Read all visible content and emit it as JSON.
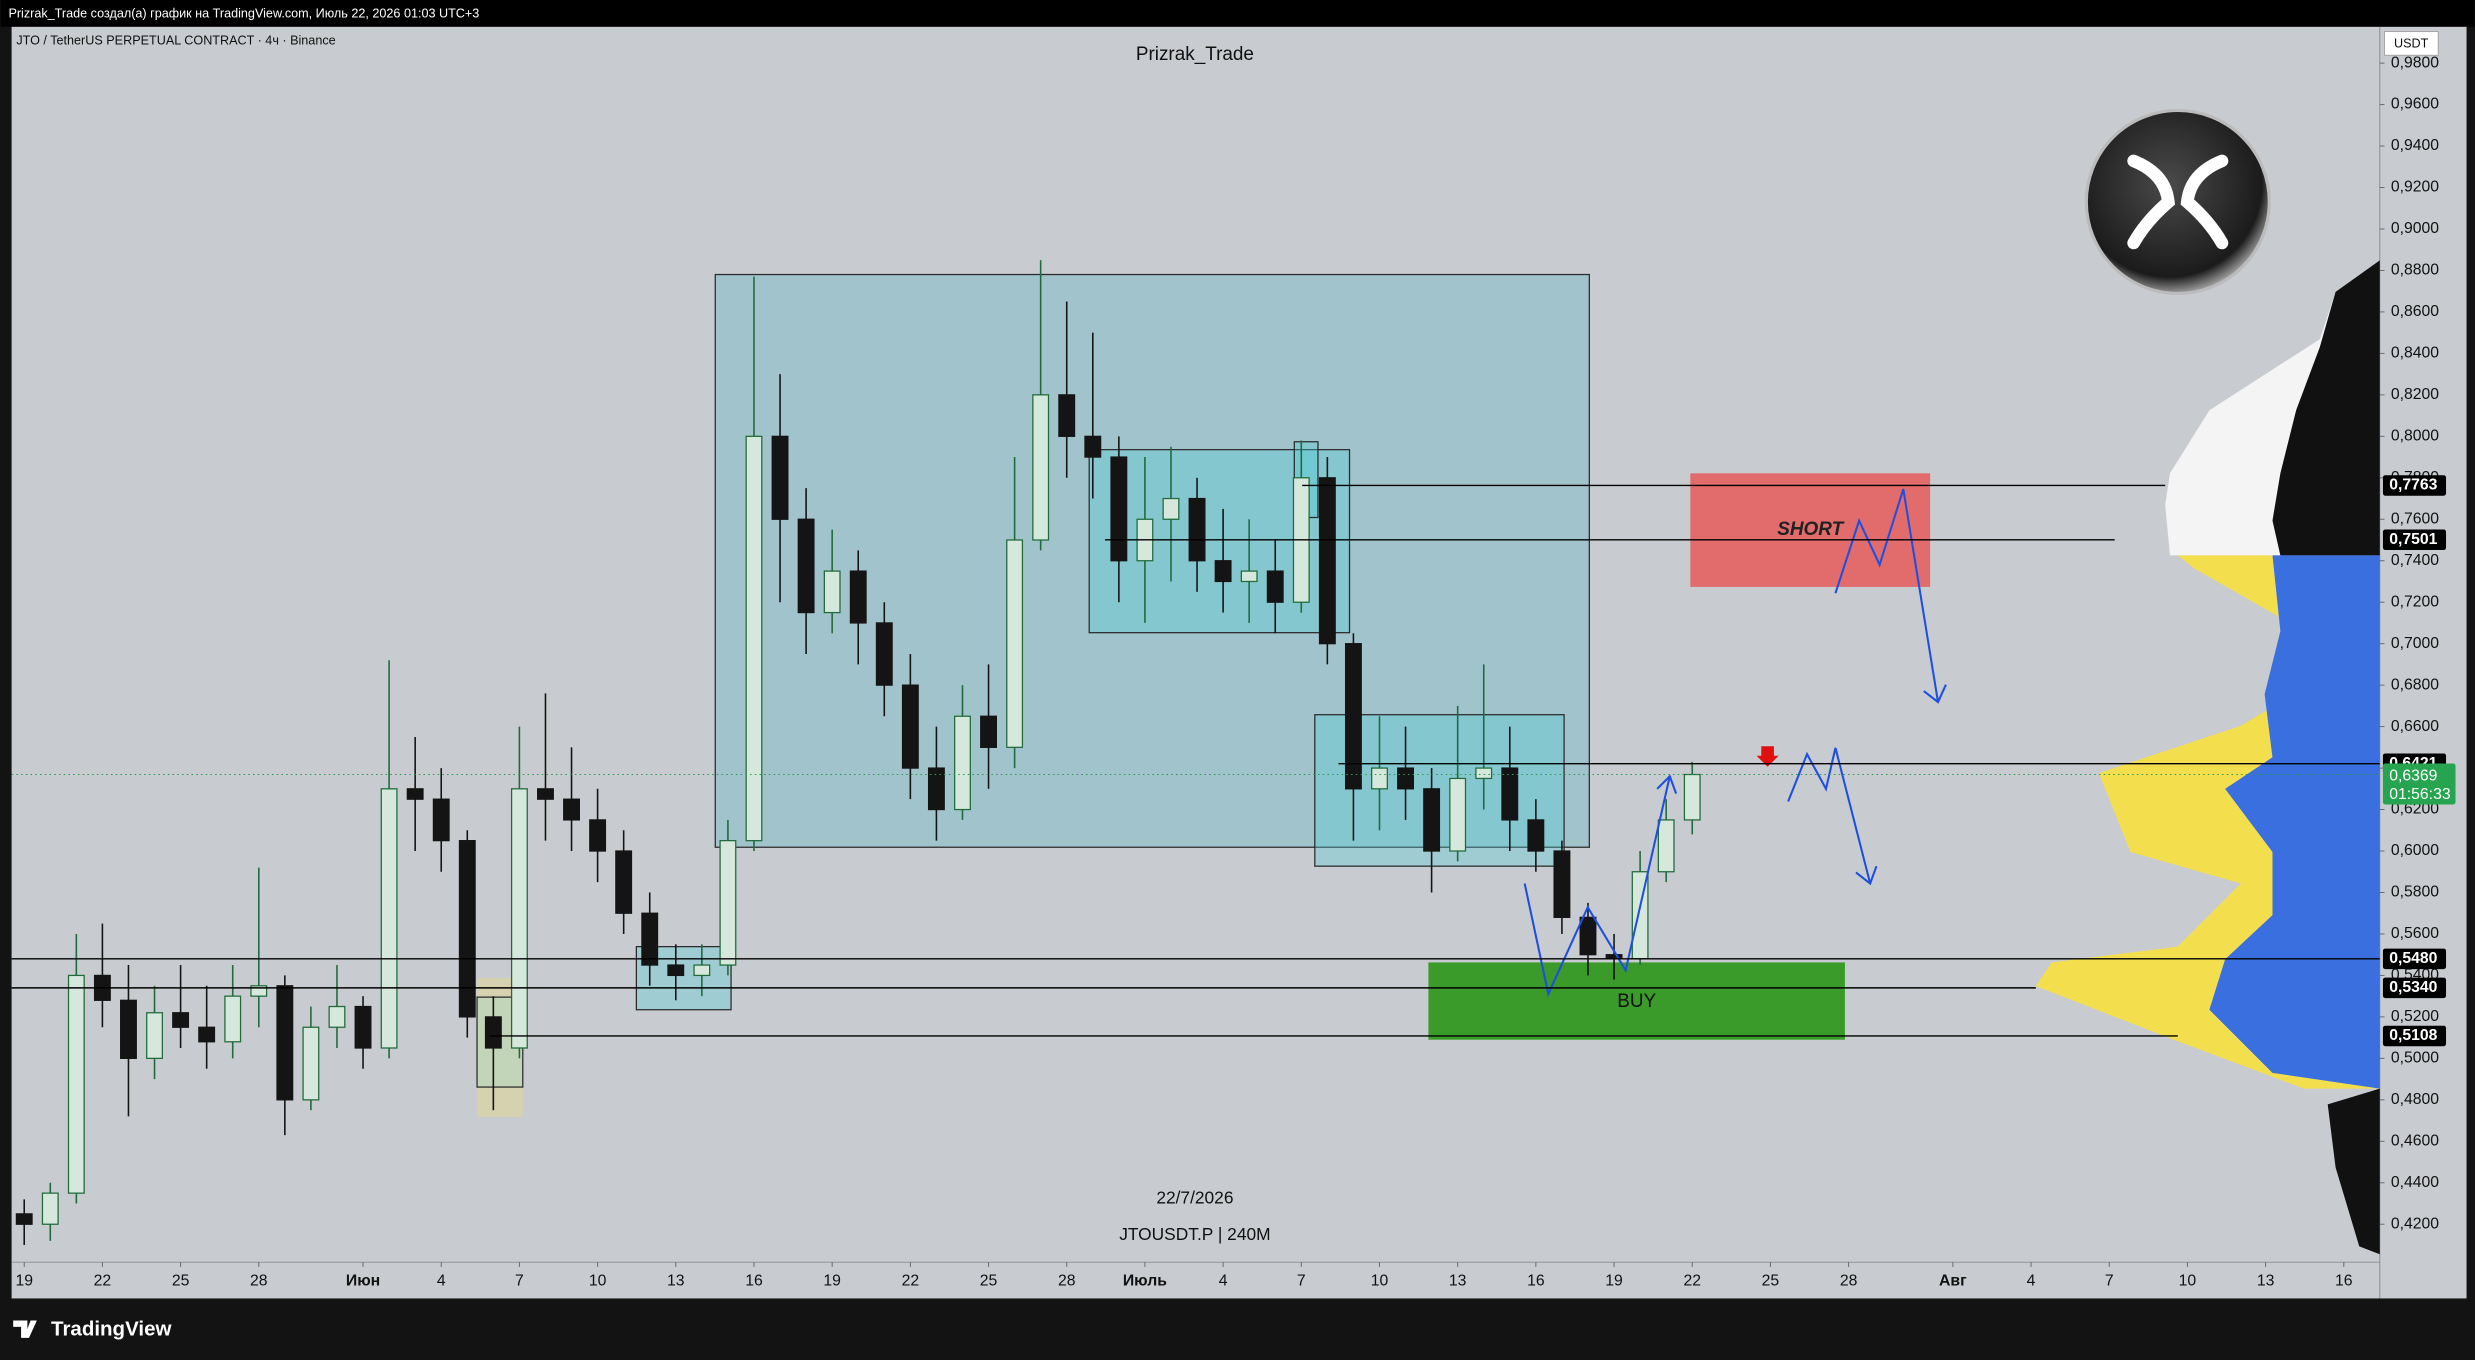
{
  "chart_data": {
    "type": "candlestick",
    "header": "Prizrak_Trade создал(а) график на TradingView.com, Июль 22, 2026 01:03 UTC+3",
    "symbol": "JTO / TetherUS PERPETUAL CONTRACT · 4ч · Binance",
    "title": "Prizrak_Trade",
    "currency": "USDT",
    "date_note": "22/7/2026",
    "ticker_note": "JTOUSDT.P | 240M",
    "brand": "TradingView",
    "zones": {
      "short": "SHORT",
      "buy": "BUY"
    },
    "up_color": "#1f6b3a",
    "down_color": "#141414",
    "x": [
      0,
      1,
      2,
      3,
      4,
      5,
      6,
      7,
      8,
      9,
      10,
      11,
      12,
      13,
      14,
      15,
      16,
      17,
      18,
      19,
      20,
      21,
      22,
      23,
      24,
      25,
      26,
      27,
      28,
      29,
      30,
      31,
      32,
      33,
      34,
      35,
      36,
      37,
      38,
      39,
      40,
      41,
      42,
      43,
      44,
      45,
      46,
      47,
      48,
      49,
      50,
      51,
      52,
      53,
      54,
      55,
      56,
      57,
      58,
      59,
      60,
      61,
      62,
      63,
      64
    ],
    "ohlc": [
      [
        0.425,
        0.432,
        0.41,
        0.42
      ],
      [
        0.42,
        0.44,
        0.412,
        0.435
      ],
      [
        0.435,
        0.56,
        0.43,
        0.54
      ],
      [
        0.54,
        0.565,
        0.515,
        0.528
      ],
      [
        0.528,
        0.545,
        0.472,
        0.5
      ],
      [
        0.5,
        0.535,
        0.49,
        0.522
      ],
      [
        0.522,
        0.545,
        0.505,
        0.515
      ],
      [
        0.515,
        0.535,
        0.495,
        0.508
      ],
      [
        0.508,
        0.545,
        0.5,
        0.53
      ],
      [
        0.53,
        0.592,
        0.515,
        0.535
      ],
      [
        0.535,
        0.54,
        0.463,
        0.48
      ],
      [
        0.48,
        0.525,
        0.475,
        0.515
      ],
      [
        0.515,
        0.545,
        0.505,
        0.525
      ],
      [
        0.525,
        0.53,
        0.495,
        0.505
      ],
      [
        0.505,
        0.692,
        0.5,
        0.63
      ],
      [
        0.63,
        0.655,
        0.6,
        0.625
      ],
      [
        0.625,
        0.64,
        0.59,
        0.605
      ],
      [
        0.605,
        0.61,
        0.51,
        0.52
      ],
      [
        0.52,
        0.53,
        0.475,
        0.505
      ],
      [
        0.505,
        0.66,
        0.5,
        0.63
      ],
      [
        0.63,
        0.676,
        0.605,
        0.625
      ],
      [
        0.625,
        0.65,
        0.6,
        0.615
      ],
      [
        0.615,
        0.63,
        0.585,
        0.6
      ],
      [
        0.6,
        0.61,
        0.56,
        0.57
      ],
      [
        0.57,
        0.58,
        0.535,
        0.545
      ],
      [
        0.545,
        0.555,
        0.528,
        0.54
      ],
      [
        0.54,
        0.555,
        0.53,
        0.545
      ],
      [
        0.545,
        0.615,
        0.54,
        0.605
      ],
      [
        0.605,
        0.877,
        0.6,
        0.8
      ],
      [
        0.8,
        0.83,
        0.72,
        0.76
      ],
      [
        0.76,
        0.775,
        0.695,
        0.715
      ],
      [
        0.715,
        0.755,
        0.705,
        0.735
      ],
      [
        0.735,
        0.745,
        0.69,
        0.71
      ],
      [
        0.71,
        0.72,
        0.665,
        0.68
      ],
      [
        0.68,
        0.695,
        0.625,
        0.64
      ],
      [
        0.64,
        0.66,
        0.605,
        0.62
      ],
      [
        0.62,
        0.68,
        0.615,
        0.665
      ],
      [
        0.665,
        0.69,
        0.63,
        0.65
      ],
      [
        0.65,
        0.79,
        0.64,
        0.75
      ],
      [
        0.75,
        0.885,
        0.745,
        0.82
      ],
      [
        0.82,
        0.865,
        0.78,
        0.8
      ],
      [
        0.8,
        0.85,
        0.77,
        0.79
      ],
      [
        0.79,
        0.8,
        0.72,
        0.74
      ],
      [
        0.74,
        0.79,
        0.71,
        0.76
      ],
      [
        0.76,
        0.795,
        0.73,
        0.77
      ],
      [
        0.77,
        0.78,
        0.725,
        0.74
      ],
      [
        0.74,
        0.765,
        0.715,
        0.73
      ],
      [
        0.73,
        0.76,
        0.71,
        0.735
      ],
      [
        0.735,
        0.75,
        0.705,
        0.72
      ],
      [
        0.72,
        0.798,
        0.715,
        0.78
      ],
      [
        0.78,
        0.79,
        0.69,
        0.7
      ],
      [
        0.7,
        0.705,
        0.605,
        0.63
      ],
      [
        0.63,
        0.665,
        0.61,
        0.64
      ],
      [
        0.64,
        0.66,
        0.615,
        0.63
      ],
      [
        0.63,
        0.64,
        0.58,
        0.6
      ],
      [
        0.6,
        0.67,
        0.595,
        0.635
      ],
      [
        0.635,
        0.69,
        0.62,
        0.64
      ],
      [
        0.64,
        0.66,
        0.6,
        0.615
      ],
      [
        0.615,
        0.625,
        0.59,
        0.6
      ],
      [
        0.6,
        0.605,
        0.56,
        0.568
      ],
      [
        0.568,
        0.575,
        0.54,
        0.55
      ],
      [
        0.55,
        0.56,
        0.538,
        0.548
      ],
      [
        0.548,
        0.6,
        0.545,
        0.59
      ],
      [
        0.59,
        0.625,
        0.585,
        0.615
      ],
      [
        0.615,
        0.643,
        0.608,
        0.6369
      ]
    ],
    "xlim": [
      -0.484,
      90.38
    ],
    "xticks": [
      {
        "value": 0,
        "label": "19"
      },
      {
        "value": 3,
        "label": "22"
      },
      {
        "value": 6,
        "label": "25"
      },
      {
        "value": 9,
        "label": "28"
      },
      {
        "value": 13,
        "label": "Июн"
      },
      {
        "value": 16,
        "label": "4"
      },
      {
        "value": 19,
        "label": "7"
      },
      {
        "value": 22,
        "label": "10"
      },
      {
        "value": 25,
        "label": "13"
      },
      {
        "value": 28,
        "label": "16"
      },
      {
        "value": 31,
        "label": "19"
      },
      {
        "value": 34,
        "label": "22"
      },
      {
        "value": 37,
        "label": "25"
      },
      {
        "value": 40,
        "label": "28"
      },
      {
        "value": 43,
        "label": "Июль"
      },
      {
        "value": 46,
        "label": "4"
      },
      {
        "value": 49,
        "label": "7"
      },
      {
        "value": 52,
        "label": "10"
      },
      {
        "value": 55,
        "label": "13"
      },
      {
        "value": 58,
        "label": "16"
      },
      {
        "value": 61,
        "label": "19"
      },
      {
        "value": 64,
        "label": "22"
      },
      {
        "value": 67,
        "label": "25"
      },
      {
        "value": 70,
        "label": "28"
      },
      {
        "value": 74,
        "label": "Авг"
      },
      {
        "value": 77,
        "label": "4"
      },
      {
        "value": 80,
        "label": "7"
      },
      {
        "value": 83,
        "label": "10"
      },
      {
        "value": 86,
        "label": "13"
      },
      {
        "value": 89,
        "label": "16"
      }
    ],
    "ylim": [
      0.4017,
      0.9975
    ],
    "yticks": [
      {
        "value": 0.42,
        "label": "0,4200"
      },
      {
        "value": 0.44,
        "label": "0,4400"
      },
      {
        "value": 0.46,
        "label": "0,4600"
      },
      {
        "value": 0.48,
        "label": "0,4800"
      },
      {
        "value": 0.5,
        "label": "0,5000"
      },
      {
        "value": 0.52,
        "label": "0,5200"
      },
      {
        "value": 0.54,
        "label": "0,5400"
      },
      {
        "value": 0.56,
        "label": "0,5600"
      },
      {
        "value": 0.58,
        "label": "0,5800"
      },
      {
        "value": 0.6,
        "label": "0,6000"
      },
      {
        "value": 0.62,
        "label": "0,6200"
      },
      {
        "value": 0.64,
        "label": "0,6400"
      },
      {
        "value": 0.66,
        "label": "0,6600"
      },
      {
        "value": 0.68,
        "label": "0,6800"
      },
      {
        "value": 0.7,
        "label": "0,7000"
      },
      {
        "value": 0.72,
        "label": "0,7200"
      },
      {
        "value": 0.74,
        "label": "0,7400"
      },
      {
        "value": 0.76,
        "label": "0,7600"
      },
      {
        "value": 0.78,
        "label": "0,7800"
      },
      {
        "value": 0.8,
        "label": "0,8000"
      },
      {
        "value": 0.82,
        "label": "0,8200"
      },
      {
        "value": 0.84,
        "label": "0,8400"
      },
      {
        "value": 0.86,
        "label": "0,8600"
      },
      {
        "value": 0.88,
        "label": "0,8800"
      },
      {
        "value": 0.9,
        "label": "0,9000"
      },
      {
        "value": 0.92,
        "label": "0,9200"
      },
      {
        "value": 0.94,
        "label": "0,9400"
      },
      {
        "value": 0.96,
        "label": "0,9600"
      },
      {
        "value": 0.98,
        "label": "0,9800"
      }
    ],
    "price_lines": [
      {
        "value": 0.7763,
        "label": "0,7763"
      },
      {
        "value": 0.7501,
        "label": "0,7501"
      },
      {
        "value": 0.6421,
        "label": "0,6421"
      },
      {
        "value": 0.548,
        "label": "0,5480"
      },
      {
        "value": 0.534,
        "label": "0,5340"
      },
      {
        "value": 0.5108,
        "label": "0,5108"
      }
    ],
    "last_price": {
      "value": 0.6369,
      "label": "0,6369",
      "countdown": "01:56:33"
    }
  }
}
